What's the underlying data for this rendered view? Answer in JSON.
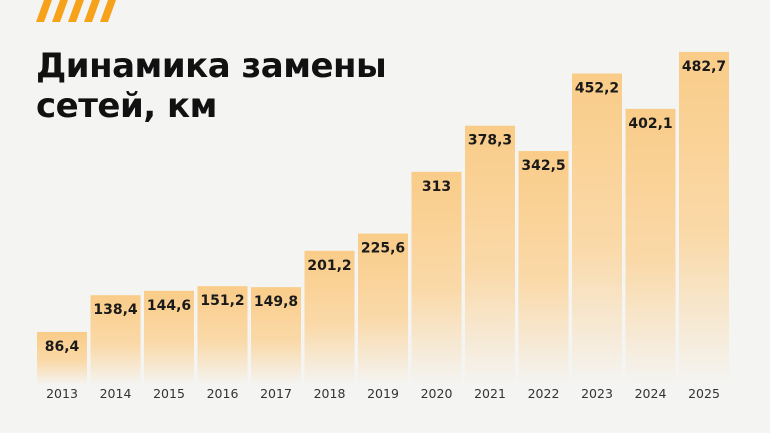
{
  "chart_data": {
    "type": "bar",
    "title": "Динамика замены сетей, км",
    "categories": [
      "2013",
      "2014",
      "2015",
      "2016",
      "2017",
      "2018",
      "2019",
      "2020",
      "2021",
      "2022",
      "2023",
      "2024",
      "2025"
    ],
    "values": [
      86.4,
      138.4,
      144.6,
      151.2,
      149.8,
      201.2,
      225.6,
      313,
      378.3,
      342.5,
      452.2,
      402.1,
      482.7
    ],
    "data_labels": [
      "86,4",
      "138,4",
      "144,6",
      "151,2",
      "149,8",
      "201,2",
      "225,6",
      "313",
      "378,3",
      "342,5",
      "452,2",
      "402,1",
      "482,7"
    ],
    "xlabel": "",
    "ylabel": "",
    "grid": false,
    "legend": "none",
    "colors": {
      "bar": "#f9cf8f",
      "accent": "#f7a21b",
      "background": "#f4f4f2",
      "text": "#1a1a1a"
    }
  }
}
